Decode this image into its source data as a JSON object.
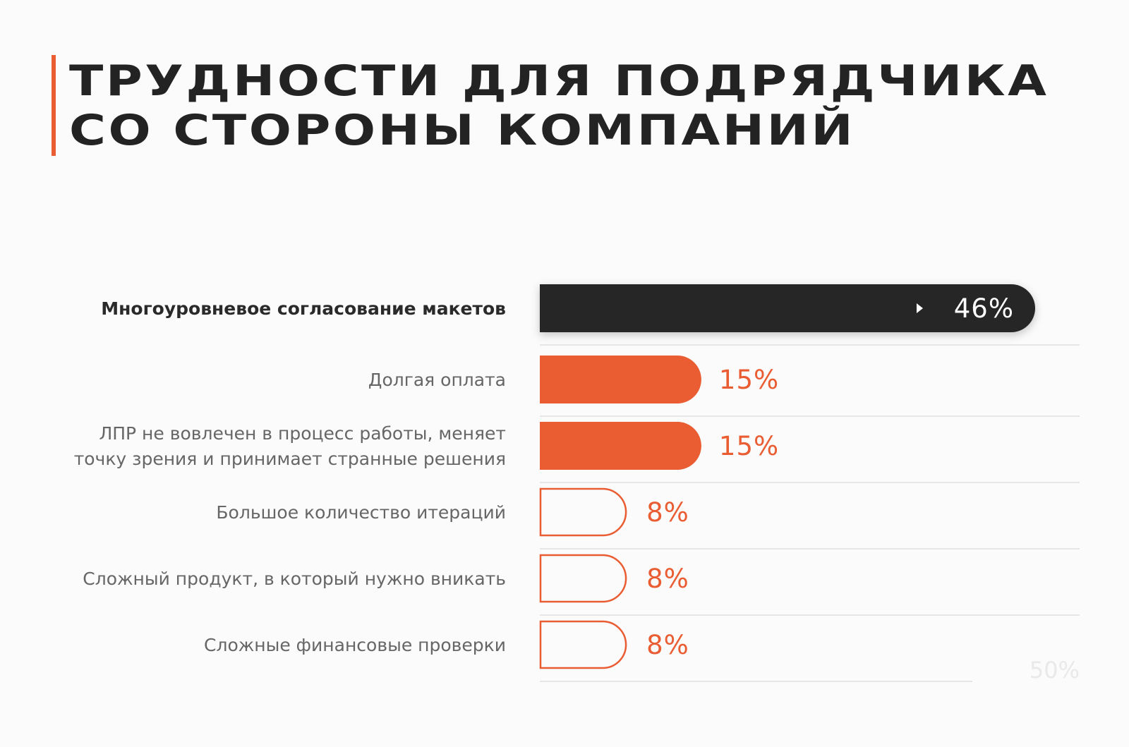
{
  "title": {
    "line1": "ТРУДНОСТИ ДЛЯ ПОДРЯДЧИКА",
    "line2": "СО СТОРОНЫ КОМПАНИЙ"
  },
  "colors": {
    "accent": "#ea5d33",
    "dark": "#262626",
    "text": "#666666",
    "divider": "#e6e6e6"
  },
  "chart_data": {
    "type": "bar",
    "orientation": "horizontal",
    "title": "ТРУДНОСТИ ДЛЯ ПОДРЯДЧИКА СО СТОРОНЫ КОМПАНИЙ",
    "categories": [
      "Многоуровневое согласование макетов",
      "Долгая оплата",
      "ЛПР не вовлечен в процесс работы, меняет точку зрения и принимает странные решения",
      "Большое количество итераций",
      "Сложный продукт, в который нужно вникать",
      "Сложные финансовые проверки"
    ],
    "category_lines": [
      [
        "Многоуровневое согласование макетов"
      ],
      [
        "Долгая оплата"
      ],
      [
        "ЛПР не вовлечен в процесс работы, меняет",
        "точку зрения и принимает странные решения"
      ],
      [
        "Большое количество итераций"
      ],
      [
        "Сложный продукт, в который нужно вникать"
      ],
      [
        "Сложные финансовые проверки"
      ]
    ],
    "values": [
      46,
      15,
      15,
      8,
      8,
      8
    ],
    "value_labels": [
      "46%",
      "15%",
      "15%",
      "8%",
      "8%",
      "8%"
    ],
    "styles": [
      "dark",
      "filled",
      "filled",
      "outline",
      "outline",
      "outline"
    ],
    "axis_label": "50%",
    "xlim": [
      0,
      50
    ],
    "grid": false,
    "legend": "none"
  }
}
